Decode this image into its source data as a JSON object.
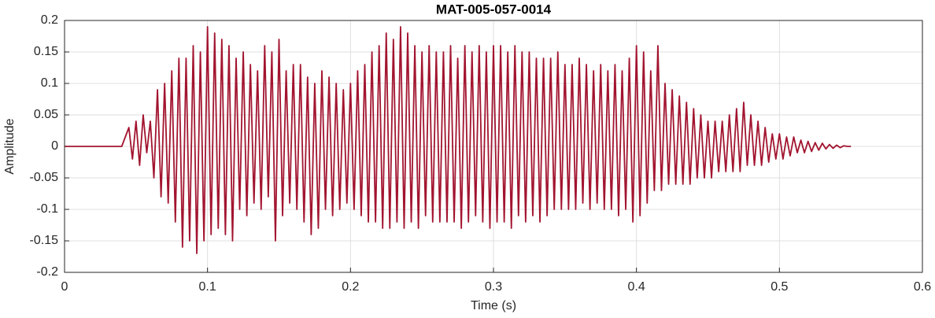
{
  "chart_data": {
    "type": "line",
    "title": "MAT-005-057-0014",
    "x_label": "Time (s)",
    "y_label": "Amplitude",
    "xlim": [
      0,
      0.6
    ],
    "ylim": [
      -0.2,
      0.2
    ],
    "xticks": [
      0,
      0.1,
      0.2,
      0.3,
      0.4,
      0.5,
      0.6
    ],
    "yticks": [
      -0.2,
      -0.15,
      -0.1,
      -0.05,
      0,
      0.05,
      0.1,
      0.15,
      0.2
    ],
    "grid": true,
    "x": [
      0,
      0.01,
      0.02,
      0.03,
      0.04,
      0.045,
      0.0475,
      0.05,
      0.0525,
      0.055,
      0.0575,
      0.06,
      0.0625,
      0.065,
      0.0675,
      0.07,
      0.0725,
      0.075,
      0.0775,
      0.08,
      0.0825,
      0.085,
      0.0875,
      0.09,
      0.0925,
      0.095,
      0.0975,
      0.1,
      0.1025,
      0.105,
      0.1075,
      0.11,
      0.1125,
      0.115,
      0.1175,
      0.12,
      0.1225,
      0.125,
      0.1275,
      0.13,
      0.1325,
      0.135,
      0.1375,
      0.14,
      0.1425,
      0.145,
      0.1475,
      0.15,
      0.1525,
      0.155,
      0.1575,
      0.16,
      0.1625,
      0.165,
      0.1675,
      0.17,
      0.1725,
      0.175,
      0.1775,
      0.18,
      0.1825,
      0.185,
      0.1875,
      0.19,
      0.1925,
      0.195,
      0.1975,
      0.2,
      0.2025,
      0.205,
      0.2075,
      0.21,
      0.2125,
      0.215,
      0.2175,
      0.22,
      0.2225,
      0.225,
      0.2275,
      0.23,
      0.2325,
      0.235,
      0.2375,
      0.24,
      0.2425,
      0.245,
      0.2475,
      0.25,
      0.2525,
      0.255,
      0.2575,
      0.26,
      0.2625,
      0.265,
      0.2675,
      0.27,
      0.2725,
      0.275,
      0.2775,
      0.28,
      0.2825,
      0.285,
      0.2875,
      0.29,
      0.2925,
      0.295,
      0.2975,
      0.3,
      0.3025,
      0.305,
      0.3075,
      0.31,
      0.3125,
      0.315,
      0.3175,
      0.32,
      0.3225,
      0.325,
      0.3275,
      0.33,
      0.3325,
      0.335,
      0.3375,
      0.34,
      0.3425,
      0.345,
      0.3475,
      0.35,
      0.3525,
      0.355,
      0.3575,
      0.36,
      0.3625,
      0.365,
      0.3675,
      0.37,
      0.3725,
      0.375,
      0.3775,
      0.38,
      0.3825,
      0.385,
      0.3875,
      0.39,
      0.3925,
      0.395,
      0.3975,
      0.4,
      0.4025,
      0.405,
      0.4075,
      0.41,
      0.4125,
      0.415,
      0.4175,
      0.42,
      0.4225,
      0.425,
      0.4275,
      0.43,
      0.4325,
      0.435,
      0.4375,
      0.44,
      0.4425,
      0.445,
      0.4475,
      0.45,
      0.4525,
      0.455,
      0.4575,
      0.46,
      0.4625,
      0.465,
      0.4675,
      0.47,
      0.4725,
      0.475,
      0.4775,
      0.48,
      0.4825,
      0.485,
      0.4875,
      0.49,
      0.4925,
      0.495,
      0.4975,
      0.5,
      0.5025,
      0.505,
      0.5075,
      0.51,
      0.5125,
      0.515,
      0.5175,
      0.52,
      0.5225,
      0.525,
      0.5275,
      0.53,
      0.5325,
      0.535,
      0.5375,
      0.54,
      0.5425,
      0.545,
      0.5475,
      0.55
    ],
    "series": [
      {
        "color": "#a2142f",
        "values": [
          0,
          0,
          0,
          0,
          0,
          0.03,
          -0.02,
          0.04,
          -0.03,
          0.05,
          -0.01,
          0.04,
          -0.05,
          0.09,
          -0.08,
          0.1,
          -0.09,
          0.12,
          -0.12,
          0.14,
          -0.16,
          0.14,
          -0.15,
          0.16,
          -0.17,
          0.15,
          -0.15,
          0.19,
          -0.14,
          0.18,
          -0.13,
          0.17,
          -0.14,
          0.16,
          -0.15,
          0.14,
          -0.1,
          0.15,
          -0.11,
          0.13,
          -0.09,
          0.12,
          -0.1,
          0.16,
          -0.08,
          0.15,
          -0.15,
          0.17,
          -0.11,
          0.12,
          -0.09,
          0.13,
          -0.1,
          0.13,
          -0.12,
          0.11,
          -0.14,
          0.1,
          -0.13,
          0.12,
          -0.1,
          0.11,
          -0.11,
          0.1,
          -0.1,
          0.09,
          -0.09,
          0.1,
          -0.1,
          0.12,
          -0.11,
          0.13,
          -0.12,
          0.15,
          -0.12,
          0.16,
          -0.13,
          0.18,
          -0.13,
          0.17,
          -0.12,
          0.19,
          -0.13,
          0.18,
          -0.12,
          0.16,
          -0.13,
          0.15,
          -0.11,
          0.16,
          -0.12,
          0.15,
          -0.12,
          0.15,
          -0.12,
          0.16,
          -0.12,
          0.14,
          -0.13,
          0.16,
          -0.12,
          0.15,
          -0.11,
          0.16,
          -0.12,
          0.15,
          -0.13,
          0.16,
          -0.12,
          0.16,
          -0.12,
          0.15,
          -0.13,
          0.16,
          -0.11,
          0.15,
          -0.12,
          0.15,
          -0.11,
          0.14,
          -0.12,
          0.14,
          -0.11,
          0.14,
          -0.1,
          0.15,
          -0.1,
          0.13,
          -0.1,
          0.13,
          -0.1,
          0.14,
          -0.09,
          0.13,
          -0.1,
          0.12,
          -0.09,
          0.13,
          -0.1,
          0.12,
          -0.1,
          0.13,
          -0.11,
          0.12,
          -0.1,
          0.14,
          -0.12,
          0.16,
          -0.11,
          0.15,
          -0.09,
          0.12,
          -0.07,
          0.16,
          -0.07,
          0.1,
          -0.06,
          0.09,
          -0.06,
          0.08,
          -0.06,
          0.07,
          -0.06,
          0.06,
          -0.05,
          0.05,
          -0.05,
          0.04,
          -0.05,
          0.04,
          -0.04,
          0.04,
          -0.04,
          0.05,
          -0.04,
          0.06,
          -0.04,
          0.07,
          -0.03,
          0.05,
          -0.03,
          0.04,
          -0.03,
          0.03,
          -0.025,
          0.02,
          -0.02,
          0.02,
          -0.02,
          0.015,
          -0.015,
          0.015,
          -0.01,
          0.01,
          -0.01,
          0.008,
          -0.008,
          0.006,
          -0.006,
          0.005,
          -0.004,
          0.003,
          -0.003,
          0.002,
          -0.002,
          0.001,
          0,
          0
        ]
      }
    ]
  }
}
